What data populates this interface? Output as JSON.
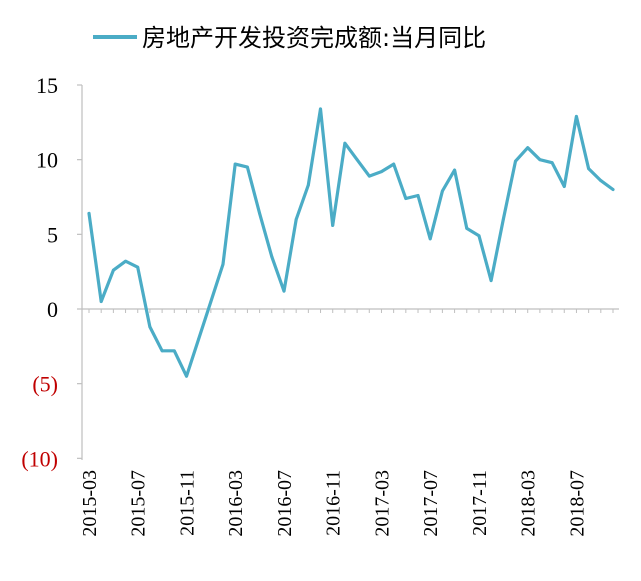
{
  "chart_data": {
    "type": "line",
    "legend_position": "top",
    "grid": false,
    "series": [
      {
        "name": "房地产开发投资完成额:当月同比",
        "color": "#4bacc6",
        "values": [
          6.4,
          0.5,
          2.6,
          3.2,
          2.8,
          -1.2,
          -2.8,
          -2.8,
          -4.5,
          -2.0,
          0.5,
          3.0,
          9.7,
          9.5,
          6.4,
          3.5,
          1.2,
          6.0,
          8.3,
          13.4,
          5.6,
          11.1,
          10.0,
          8.9,
          9.2,
          9.7,
          7.4,
          7.6,
          4.7,
          7.9,
          9.3,
          5.4,
          4.9,
          1.9,
          6.0,
          9.9,
          10.8,
          10.0,
          9.8,
          8.2,
          12.9,
          9.4,
          8.6,
          8.0
        ]
      }
    ],
    "x": [
      "2015-03",
      "2015-04",
      "2015-05",
      "2015-06",
      "2015-07",
      "2015-08",
      "2015-09",
      "2015-10",
      "2015-11",
      "2015-12",
      "2016-01",
      "2016-02",
      "2016-03",
      "2016-04",
      "2016-05",
      "2016-06",
      "2016-07",
      "2016-08",
      "2016-09",
      "2016-10",
      "2016-11",
      "2016-12",
      "2017-01",
      "2017-02",
      "2017-03",
      "2017-04",
      "2017-05",
      "2017-06",
      "2017-07",
      "2017-08",
      "2017-09",
      "2017-10",
      "2017-11",
      "2017-12",
      "2018-01",
      "2018-02",
      "2018-03",
      "2018-04",
      "2018-05",
      "2018-06",
      "2018-07",
      "2018-08",
      "2018-09",
      "2018-10"
    ],
    "x_tick_labels": [
      "2015-03",
      "2015-07",
      "2015-11",
      "2016-03",
      "2016-07",
      "2016-11",
      "2017-03",
      "2017-07",
      "2017-11",
      "2018-03",
      "2018-07"
    ],
    "y_tick_labels": [
      "15",
      "10",
      "5",
      "0",
      "(5)",
      "(10)"
    ],
    "y_ticks": [
      15,
      10,
      5,
      0,
      -5,
      -10
    ],
    "ylim": [
      -10,
      15
    ]
  }
}
